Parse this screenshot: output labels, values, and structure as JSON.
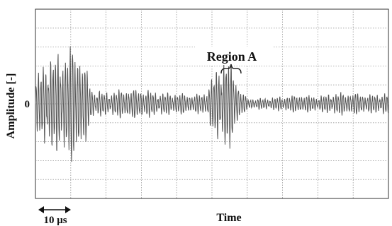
{
  "chart_data": {
    "type": "line",
    "title": "",
    "xlabel": "Time",
    "ylabel": "Amplitude  [-]",
    "y_tick_labels": [
      {
        "value": 0,
        "label": "0"
      }
    ],
    "xlim": [
      0,
      100
    ],
    "ylim": [
      -5,
      5
    ],
    "grid": true,
    "grid_style": "dotted",
    "line_color": "#555555",
    "scale_bar": {
      "label": "10 μs",
      "length_x_units": 10
    },
    "annotation": {
      "label": "Region A",
      "x_range": [
        52,
        56
      ]
    },
    "series": [
      {
        "envelope": [
          [
            0,
            1.2
          ],
          [
            3,
            2.5
          ],
          [
            5,
            2.5
          ],
          [
            7,
            2.7
          ],
          [
            9,
            3.0
          ],
          [
            11,
            3.2
          ],
          [
            13,
            2.8
          ],
          [
            15,
            1.5
          ],
          [
            16,
            0.8
          ],
          [
            20,
            0.6
          ],
          [
            25,
            0.8
          ],
          [
            30,
            0.8
          ],
          [
            35,
            0.6
          ],
          [
            40,
            0.6
          ],
          [
            45,
            0.5
          ],
          [
            48,
            0.6
          ],
          [
            50,
            1.4
          ],
          [
            52,
            2.1
          ],
          [
            54,
            2.6
          ],
          [
            56,
            2.0
          ],
          [
            58,
            0.8
          ],
          [
            60,
            0.3
          ],
          [
            65,
            0.3
          ],
          [
            70,
            0.4
          ],
          [
            75,
            0.5
          ],
          [
            80,
            0.4
          ],
          [
            85,
            0.6
          ],
          [
            90,
            0.6
          ],
          [
            95,
            0.5
          ],
          [
            100,
            0.6
          ]
        ]
      }
    ]
  }
}
